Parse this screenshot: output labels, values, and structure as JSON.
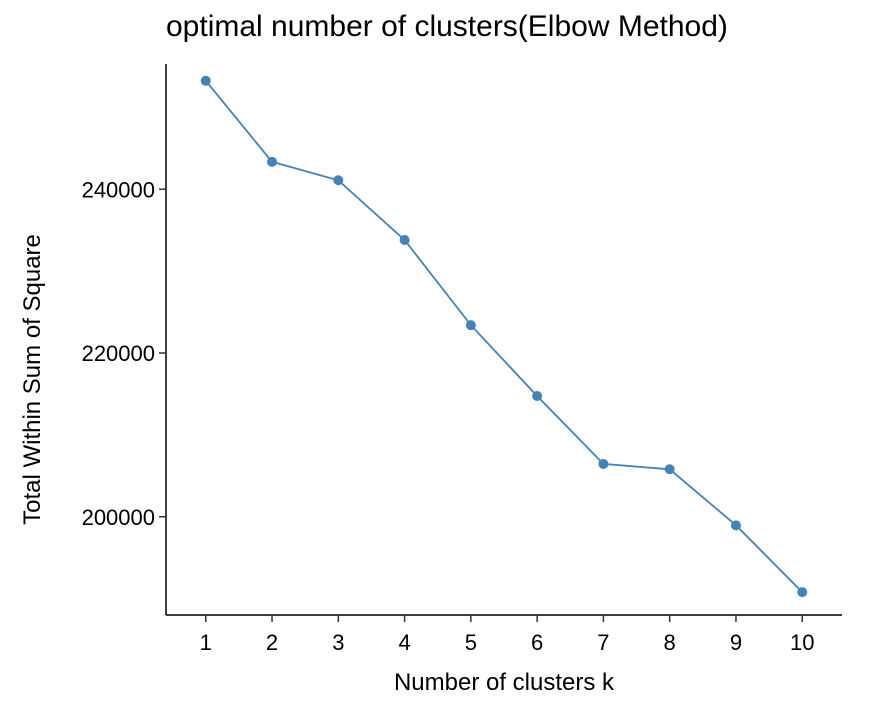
{
  "chart_data": {
    "type": "line",
    "title": "optimal number of clusters(Elbow Method)",
    "xlabel": "Number of clusters k",
    "ylabel": "Total Within Sum of Square",
    "x": [
      1,
      2,
      3,
      4,
      5,
      6,
      7,
      8,
      9,
      10
    ],
    "x_ticks": [
      "1",
      "2",
      "3",
      "4",
      "5",
      "6",
      "7",
      "8",
      "9",
      "10"
    ],
    "y_ticks": [
      "200000",
      "220000",
      "240000"
    ],
    "y_tick_values": [
      200000,
      220000,
      240000
    ],
    "series": [
      {
        "values": [
          253250,
          243350,
          241100,
          233800,
          223400,
          214750,
          206450,
          205800,
          198950,
          190800
        ]
      }
    ],
    "xlim": [
      0.4,
      10.6
    ],
    "ylim": [
      188000,
      255300
    ],
    "grid": false,
    "color": "#4682B4"
  }
}
